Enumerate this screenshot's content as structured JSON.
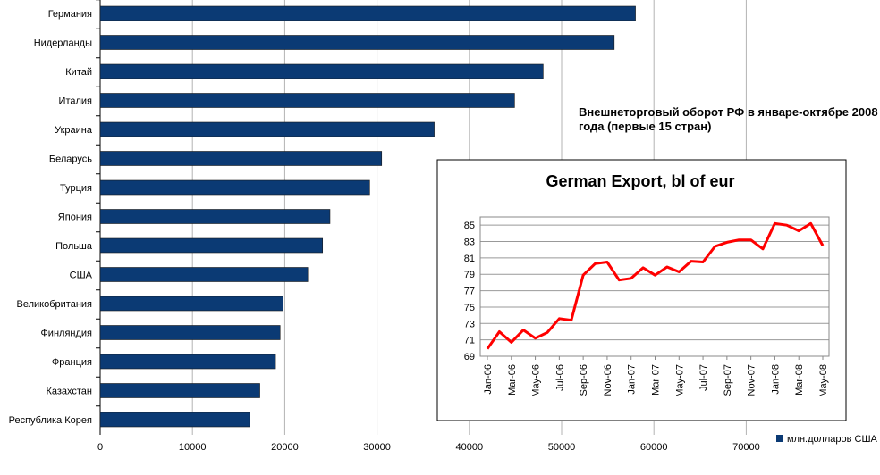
{
  "chart_data": [
    {
      "type": "bar",
      "orientation": "horizontal",
      "title": "Внешнеторговый оборот РФ в январе-октябре 2008 года (первые 15 стран)",
      "title_lines": [
        "Внешнеторговый оборот РФ в январе-октябре 2008",
        "года (первые 15 стран)"
      ],
      "categories": [
        "Германия",
        "Нидерланды",
        "Китай",
        "Италия",
        "Украина",
        "Беларусь",
        "Турция",
        "Япония",
        "Польша",
        "США",
        "Великобритания",
        "Финляндия",
        "Франция",
        "Казахстан",
        "Республика Корея"
      ],
      "series": [
        {
          "name": "млн.долларов США",
          "color": "#0b3a74",
          "values": [
            58000,
            55700,
            48000,
            44900,
            36200,
            30500,
            29200,
            24900,
            24100,
            22500,
            19800,
            19500,
            19000,
            17300,
            16200
          ]
        }
      ],
      "xlim": [
        0,
        80000
      ],
      "xticks": [
        0,
        10000,
        20000,
        30000,
        40000,
        50000,
        60000,
        70000
      ],
      "grid": true,
      "legend_position": "bottom-right"
    },
    {
      "type": "line",
      "title": "German Export, bl of eur",
      "x_tick_labels": [
        "Jan-06",
        "Mar-06",
        "May-06",
        "Jul-06",
        "Sep-06",
        "Nov-06",
        "Jan-07",
        "Mar-07",
        "May-07",
        "Jul-07",
        "Sep-07",
        "Nov-07",
        "Jan-08",
        "Mar-08",
        "May-08"
      ],
      "x": [
        "Jan-06",
        "Feb-06",
        "Mar-06",
        "Apr-06",
        "May-06",
        "Jun-06",
        "Jul-06",
        "Aug-06",
        "Sep-06",
        "Oct-06",
        "Nov-06",
        "Dec-06",
        "Jan-07",
        "Feb-07",
        "Mar-07",
        "Apr-07",
        "May-07",
        "Jun-07",
        "Jul-07",
        "Aug-07",
        "Sep-07",
        "Oct-07",
        "Nov-07",
        "Dec-07",
        "Jan-08",
        "Feb-08",
        "Mar-08",
        "Apr-08",
        "May-08"
      ],
      "series": [
        {
          "color": "#ff0000",
          "values": [
            69.9,
            72.0,
            70.7,
            72.2,
            71.2,
            71.9,
            73.6,
            73.4,
            78.9,
            80.3,
            80.5,
            78.3,
            78.5,
            79.8,
            78.9,
            79.9,
            79.3,
            80.6,
            80.5,
            82.4,
            82.9,
            83.2,
            83.2,
            82.1,
            85.2,
            85.0,
            84.3,
            85.2,
            82.5
          ]
        }
      ],
      "ylim": [
        69,
        86
      ],
      "yticks": [
        69,
        71,
        73,
        75,
        77,
        79,
        81,
        83,
        85
      ],
      "grid": true
    }
  ]
}
